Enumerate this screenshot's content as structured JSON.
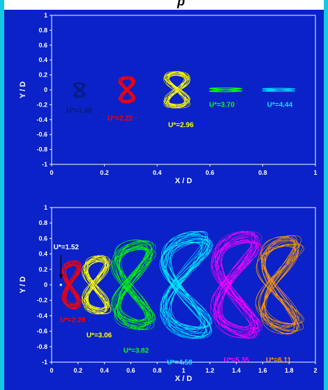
{
  "header": {
    "partial_title": "p"
  },
  "chart_data": [
    {
      "type": "scatter",
      "title": "",
      "xlabel": "X / D",
      "ylabel": "Y / D",
      "xlim": [
        0,
        1
      ],
      "ylim": [
        -1,
        1
      ],
      "xticks": [
        0,
        0.2,
        0.4,
        0.6,
        0.8,
        1
      ],
      "xtick_labels": [
        "0",
        "0.2",
        "0.4",
        "0.6",
        "0.8",
        "1"
      ],
      "yticks": [
        -1,
        -0.8,
        -0.6,
        -0.4,
        -0.2,
        0,
        0.2,
        0.4,
        0.6,
        0.8,
        1
      ],
      "ytick_labels": [
        "-1",
        "-0.8",
        "-0.6",
        "-0.4",
        "-0.2",
        "0",
        "0.2",
        "0.4",
        "0.6",
        "0.8",
        "1"
      ],
      "grid": false,
      "series": [
        {
          "name": "U*=1.48",
          "color": "#0a1a6e",
          "cx": 0.105,
          "amp_x": 0.018,
          "amp_y": 0.09,
          "bend": 0.0,
          "loops": 6,
          "label": {
            "x": 0.105,
            "y": -0.31
          }
        },
        {
          "name": "U*=2.22",
          "color": "#ff0000",
          "cx": 0.285,
          "amp_x": 0.025,
          "amp_y": 0.16,
          "bend": 0.0,
          "loops": 14,
          "label": {
            "x": 0.26,
            "y": -0.41
          }
        },
        {
          "name": "U*=2.96",
          "color": "#ffff00",
          "cx": 0.475,
          "amp_x": 0.04,
          "amp_y": 0.22,
          "bend": 0.0,
          "loops": 14,
          "label": {
            "x": 0.49,
            "y": -0.5
          }
        },
        {
          "name": "U*=3.70",
          "color": "#00ff00",
          "cx": 0.66,
          "amp_x": 0.05,
          "amp_y": 0.025,
          "bend": 0.0,
          "loops": 8,
          "label": {
            "x": 0.645,
            "y": -0.23
          }
        },
        {
          "name": "U*=4.44",
          "color": "#00e5ff",
          "cx": 0.86,
          "amp_x": 0.05,
          "amp_y": 0.02,
          "bend": 0.0,
          "loops": 6,
          "label": {
            "x": 0.865,
            "y": -0.23
          }
        }
      ]
    },
    {
      "type": "scatter",
      "title": "",
      "xlabel": "X / D",
      "ylabel": "Y / D",
      "xlim": [
        0,
        2
      ],
      "ylim": [
        -1,
        1
      ],
      "xticks": [
        0,
        0.2,
        0.4,
        0.6,
        0.8,
        1,
        1.2,
        1.4,
        1.6,
        1.8,
        2
      ],
      "xtick_labels": [
        "0",
        "0.2",
        "0.4",
        "0.6",
        "0.8",
        "1",
        "1.2",
        "1.4",
        "1.6",
        "1.8",
        "2"
      ],
      "yticks": [
        -1,
        -0.8,
        -0.6,
        -0.4,
        -0.2,
        0,
        0.2,
        0.4,
        0.6,
        0.8,
        1
      ],
      "ytick_labels": [
        "-1",
        "-0.8",
        "-0.6",
        "-0.4",
        "-0.2",
        "0",
        "0.2",
        "0.4",
        "0.6",
        "0.8",
        "1"
      ],
      "grid": false,
      "series": [
        {
          "name": "U*=1.52",
          "color": "#ffffff",
          "cx": 0.07,
          "amp_x": 0.006,
          "amp_y": 0.01,
          "bend": 0.0,
          "loops": 3,
          "label": {
            "x": 0.11,
            "y": 0.46
          }
        },
        {
          "name": "U*=2.28",
          "color": "#ff0000",
          "cx": 0.15,
          "amp_x": 0.055,
          "amp_y": 0.28,
          "bend": 0.04,
          "loops": 14,
          "label": {
            "x": 0.16,
            "y": -0.48
          }
        },
        {
          "name": "U*=3.06",
          "color": "#ffff00",
          "cx": 0.34,
          "amp_x": 0.08,
          "amp_y": 0.34,
          "bend": 0.06,
          "loops": 16,
          "label": {
            "x": 0.36,
            "y": -0.68
          }
        },
        {
          "name": "U*=3.82",
          "color": "#00ff00",
          "cx": 0.62,
          "amp_x": 0.12,
          "amp_y": 0.52,
          "bend": 0.1,
          "loops": 18,
          "label": {
            "x": 0.64,
            "y": -0.88
          }
        },
        {
          "name": "U*=4.58",
          "color": "#00f0ff",
          "cx": 1.02,
          "amp_x": 0.14,
          "amp_y": 0.62,
          "bend": 0.16,
          "loops": 18,
          "label": {
            "x": 0.97,
            "y": -1.03
          }
        },
        {
          "name": "U*=5.35",
          "color": "#ff00ff",
          "cx": 1.4,
          "amp_x": 0.13,
          "amp_y": 0.62,
          "bend": 0.16,
          "loops": 18,
          "label": {
            "x": 1.4,
            "y": -1.0
          }
        },
        {
          "name": "U*=6.11",
          "color": "#ff9900",
          "cx": 1.73,
          "amp_x": 0.12,
          "amp_y": 0.57,
          "bend": 0.14,
          "loops": 16,
          "label": {
            "x": 1.72,
            "y": -1.0
          }
        }
      ],
      "annotation": {
        "text": "U*=1.52",
        "arrow_from": [
          0.07,
          0.38
        ],
        "arrow_to": [
          0.07,
          0.08
        ]
      }
    }
  ]
}
